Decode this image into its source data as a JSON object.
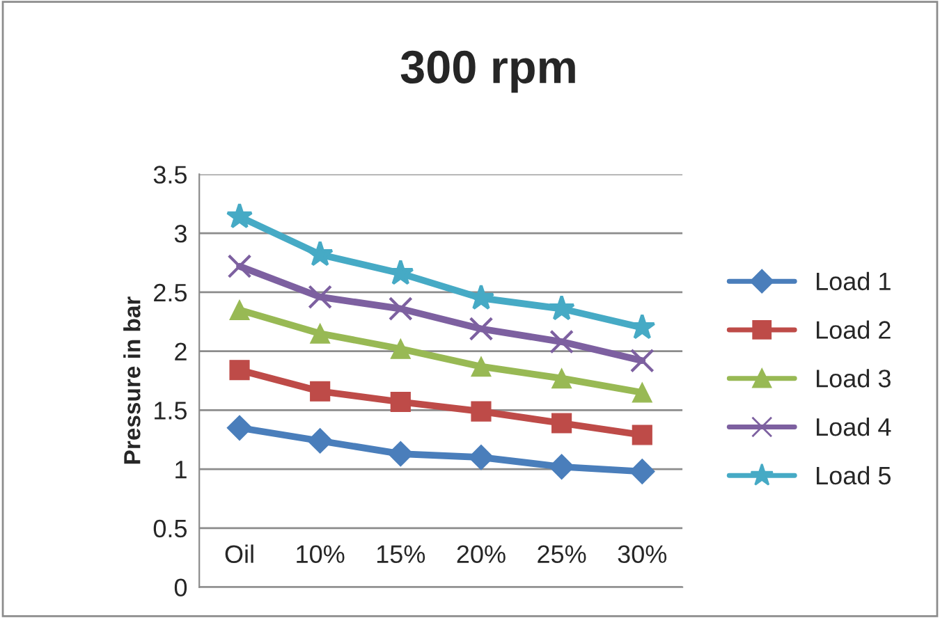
{
  "chart_data": {
    "type": "line",
    "title": "300 rpm",
    "ylabel": "Pressure in bar",
    "categories": [
      "Oil",
      "10%",
      "15%",
      "20%",
      "25%",
      "30%"
    ],
    "series": [
      {
        "name": "Load 1",
        "color": "#4a7ebb",
        "marker": "diamond",
        "values": [
          1.35,
          1.24,
          1.13,
          1.1,
          1.02,
          0.98
        ]
      },
      {
        "name": "Load 2",
        "color": "#be4b48",
        "marker": "square",
        "values": [
          1.84,
          1.66,
          1.57,
          1.49,
          1.39,
          1.29
        ]
      },
      {
        "name": "Load 3",
        "color": "#98b954",
        "marker": "triangle",
        "values": [
          2.35,
          2.15,
          2.02,
          1.87,
          1.77,
          1.65
        ]
      },
      {
        "name": "Load 4",
        "color": "#7d60a0",
        "marker": "cross",
        "values": [
          2.72,
          2.46,
          2.36,
          2.19,
          2.08,
          1.92
        ]
      },
      {
        "name": "Load 5",
        "color": "#46aac5",
        "marker": "star",
        "values": [
          3.14,
          2.82,
          2.66,
          2.45,
          2.36,
          2.2
        ]
      }
    ],
    "ylim": [
      0,
      3.5
    ],
    "yticks": [
      0,
      0.5,
      1,
      1.5,
      2,
      2.5,
      3,
      3.5
    ],
    "grid": "y",
    "legend": "right",
    "line_style": "solid"
  }
}
